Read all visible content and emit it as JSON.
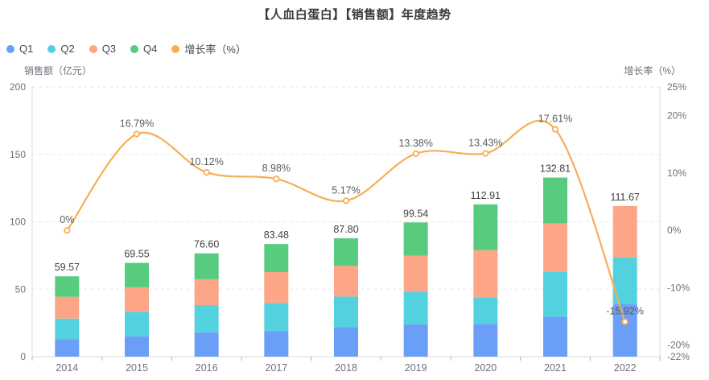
{
  "title": "【人血白蛋白】【销售额】年度趋势",
  "legend": [
    {
      "label": "Q1",
      "color": "#6b9ff7"
    },
    {
      "label": "Q2",
      "color": "#54d1df"
    },
    {
      "label": "Q3",
      "color": "#fca687"
    },
    {
      "label": "Q4",
      "color": "#57cc7e"
    },
    {
      "label": "增长率（%）",
      "color": "#f6ae54"
    }
  ],
  "chart_data": {
    "type": "bar",
    "subtype": "stacked-bars-with-line",
    "title": "【人血白蛋白】【销售额】年度趋势",
    "categories": [
      "2014",
      "2015",
      "2016",
      "2017",
      "2018",
      "2019",
      "2020",
      "2021",
      "2022"
    ],
    "series": [
      {
        "name": "Q1",
        "type": "bar",
        "stack": "sales",
        "color": "#6b9ff7",
        "values": [
          13.0,
          15.0,
          18.0,
          19.0,
          22.0,
          24.0,
          24.3,
          29.6,
          39.0
        ]
      },
      {
        "name": "Q2",
        "type": "bar",
        "stack": "sales",
        "color": "#54d1df",
        "values": [
          15.2,
          18.2,
          20.2,
          20.8,
          22.6,
          24.2,
          19.7,
          33.6,
          34.5
        ]
      },
      {
        "name": "Q3",
        "type": "bar",
        "stack": "sales",
        "color": "#fca687",
        "values": [
          16.2,
          18.2,
          19.2,
          22.9,
          22.7,
          26.7,
          35.0,
          35.5,
          38.17
        ]
      },
      {
        "name": "Q4",
        "type": "bar",
        "stack": "sales",
        "color": "#57cc7e",
        "values": [
          15.17,
          18.15,
          19.2,
          20.78,
          20.5,
          24.64,
          33.91,
          34.11,
          0
        ]
      },
      {
        "name": "增长率（%）",
        "type": "line",
        "axis": "right",
        "color": "#f6ae54",
        "values": [
          0,
          16.79,
          10.12,
          8.98,
          5.17,
          13.38,
          13.43,
          17.61,
          -15.92
        ]
      }
    ],
    "bar_totals": [
      "59.57",
      "69.55",
      "76.60",
      "83.48",
      "87.80",
      "99.54",
      "112.91",
      "132.81",
      "111.67"
    ],
    "line_labels": [
      "0%",
      "16.79%",
      "10.12%",
      "8.98%",
      "5.17%",
      "13.38%",
      "13.43%",
      "17.61%",
      "-15.92%"
    ],
    "left_axis": {
      "name": "销售额（亿元）",
      "min": 0,
      "max": 200,
      "ticks": [
        0,
        50,
        100,
        150,
        200
      ],
      "tick_labels": [
        "0",
        "50",
        "100",
        "150",
        "200"
      ]
    },
    "right_axis": {
      "name": "增长率（%）",
      "min": -22,
      "max": 25,
      "ticks": [
        25,
        20,
        10,
        0,
        -10,
        -20,
        -22
      ],
      "tick_labels": [
        "25%",
        "20%",
        "10%",
        "0%",
        "-10%",
        "-20%",
        "-22%"
      ]
    },
    "ylim_left": [
      0,
      200
    ],
    "ylim_right": [
      -22,
      25
    ],
    "grid": "dashed horizontal gridlines at left-axis ticks",
    "legend_position": "top-left"
  },
  "style": {
    "grid_color": "#e2e6f0",
    "axis_line_color": "#d8dbe2",
    "tick_color": "#aeb3bd",
    "tick_label_color": "#6e7079",
    "bar_label_color": "#404040",
    "line_label_color": "#5c5c5c"
  }
}
